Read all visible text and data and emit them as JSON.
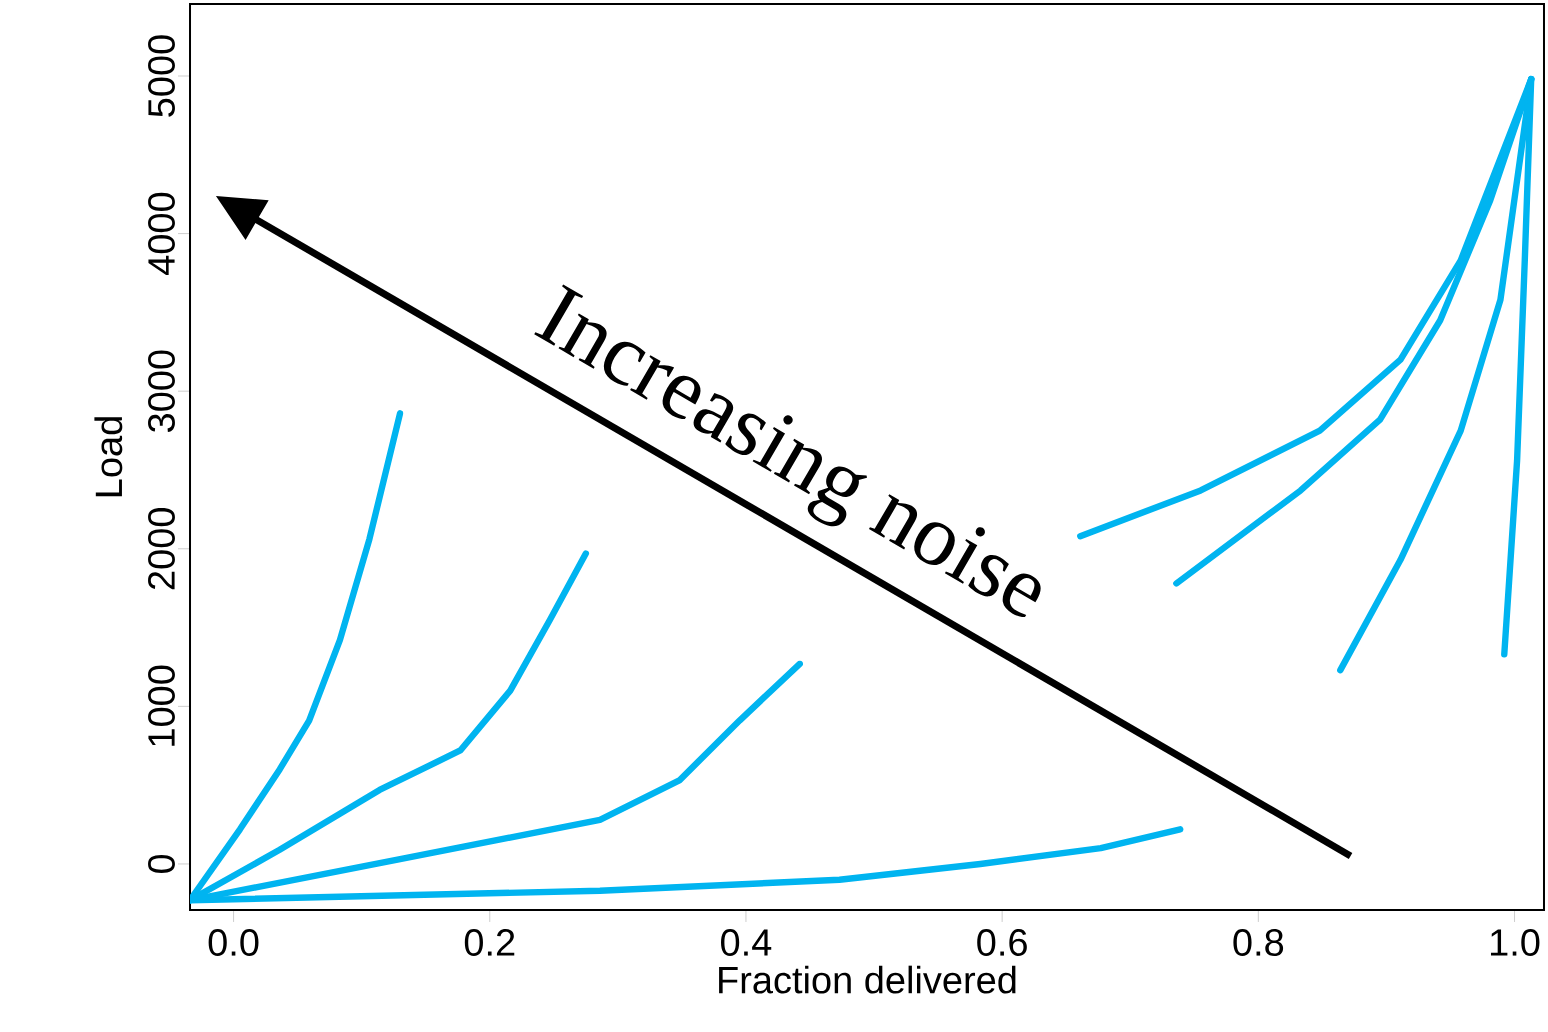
{
  "chart_data": {
    "type": "line",
    "xlabel": "Fraction delivered",
    "ylabel": "Load",
    "annotations": [
      "Increasing noise"
    ],
    "xlim": [
      -0.034,
      1.023
    ],
    "ylim": [
      -292,
      5457
    ],
    "xticks": [
      {
        "value": 0,
        "label": "0.0"
      },
      {
        "value": 0.2,
        "label": "0.2"
      },
      {
        "value": 0.4,
        "label": "0.4"
      },
      {
        "value": 0.6,
        "label": "0.6"
      },
      {
        "value": 0.8,
        "label": "0.8"
      },
      {
        "value": 1,
        "label": "1.0"
      }
    ],
    "yticks": [
      0,
      1000,
      2000,
      3000,
      4000,
      5000
    ],
    "grid": false,
    "marker": "none",
    "line_style": "solid",
    "series": [
      {
        "color": "#00b4f0",
        "x": [
          -0.034,
          0.005,
          0.036,
          0.059,
          0.083,
          0.106,
          0.13
        ],
        "values": [
          -230,
          220,
          600,
          910,
          1420,
          2060,
          2860
        ]
      },
      {
        "color": "#00b4f0",
        "x": [
          -0.034,
          0.036,
          0.114,
          0.177,
          0.216,
          0.247,
          0.275
        ],
        "values": [
          -230,
          90,
          470,
          720,
          1100,
          1550,
          1970
        ]
      },
      {
        "color": "#00b4f0",
        "x": [
          -0.034,
          0.13,
          0.286,
          0.348,
          0.395,
          0.442
        ],
        "values": [
          -230,
          30,
          280,
          530,
          910,
          1270
        ]
      },
      {
        "color": "#00b4f0",
        "x": [
          -0.034,
          0.286,
          0.473,
          0.583,
          0.677,
          0.739
        ],
        "values": [
          -230,
          -170,
          -100,
          0,
          100,
          220
        ]
      },
      {
        "color": "#00b4f0",
        "x": [
          0.661,
          0.755,
          0.848,
          0.911,
          0.958,
          1.013
        ],
        "values": [
          2080,
          2370,
          2750,
          3200,
          3830,
          4980
        ]
      },
      {
        "color": "#00b4f0",
        "x": [
          0.736,
          0.833,
          0.895,
          0.942,
          0.981,
          1.013
        ],
        "values": [
          1780,
          2370,
          2820,
          3450,
          4210,
          4980
        ]
      },
      {
        "color": "#00b4f0",
        "x": [
          0.864,
          0.911,
          0.958,
          0.989,
          1.013
        ],
        "values": [
          1230,
          1930,
          2750,
          3580,
          4980
        ]
      },
      {
        "color": "#00b4f0",
        "x": [
          0.992,
          1.002,
          1.008,
          1.013
        ],
        "values": [
          1330,
          2560,
          3830,
          4980
        ]
      }
    ]
  }
}
